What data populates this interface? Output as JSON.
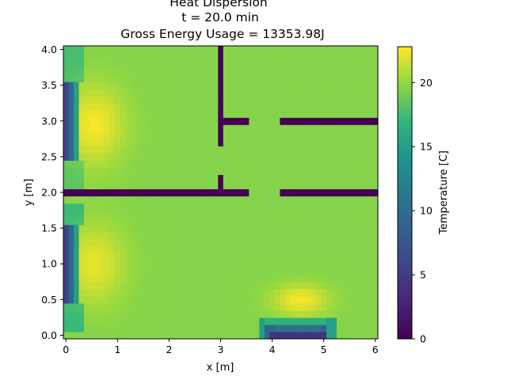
{
  "chart_data": {
    "type": "heatmap",
    "title_lines": [
      "Heat Dispersion",
      "t = 20.0 min",
      "Gross Energy Usage = 13353.98J"
    ],
    "xlabel": "x [m]",
    "ylabel": "y [m]",
    "xlim": [
      -0.05,
      6.05
    ],
    "ylim": [
      -0.05,
      4.05
    ],
    "xticks": [
      0,
      1,
      2,
      3,
      4,
      5,
      6
    ],
    "yticks": [
      0.0,
      0.5,
      1.0,
      1.5,
      2.0,
      2.5,
      3.0,
      3.5,
      4.0
    ],
    "colorbar": {
      "label": "Temperature [C]",
      "range": [
        0,
        22.8
      ],
      "ticks": [
        0,
        5,
        10,
        15,
        20
      ],
      "colormap": "viridis"
    },
    "grid_resolution_m": 0.1,
    "ambient_temperature": 19.6,
    "walls": [
      {
        "x0": 0.0,
        "x1": 3.6,
        "y0": 1.95,
        "y1": 2.05
      },
      {
        "x0": 4.15,
        "x1": 6.05,
        "y0": 1.95,
        "y1": 2.05
      },
      {
        "x0": 2.95,
        "x1": 3.6,
        "y0": 2.95,
        "y1": 3.05
      },
      {
        "x0": 4.15,
        "x1": 6.05,
        "y0": 2.95,
        "y1": 3.05
      },
      {
        "x0": 2.95,
        "x1": 3.05,
        "y0": 2.05,
        "y1": 2.25
      },
      {
        "x0": 2.95,
        "x1": 3.05,
        "y0": 2.65,
        "y1": 4.05
      }
    ],
    "heaters": [
      {
        "x": 0.05,
        "y_from": 2.5,
        "y_to": 3.55,
        "temperature": 5.0,
        "glow_x": 0.55,
        "glow_y": 2.95,
        "glow_peak": 22.6
      },
      {
        "x": 0.05,
        "y_from": 0.45,
        "y_to": 1.5,
        "temperature": 5.0,
        "glow_x": 0.55,
        "glow_y": 1.0,
        "glow_peak": 22.2
      },
      {
        "x_from": 3.95,
        "x_to": 5.05,
        "y": 0.05,
        "temperature": 4.0,
        "glow_x": 4.55,
        "glow_y": 0.5,
        "glow_peak": 22.6
      }
    ]
  }
}
